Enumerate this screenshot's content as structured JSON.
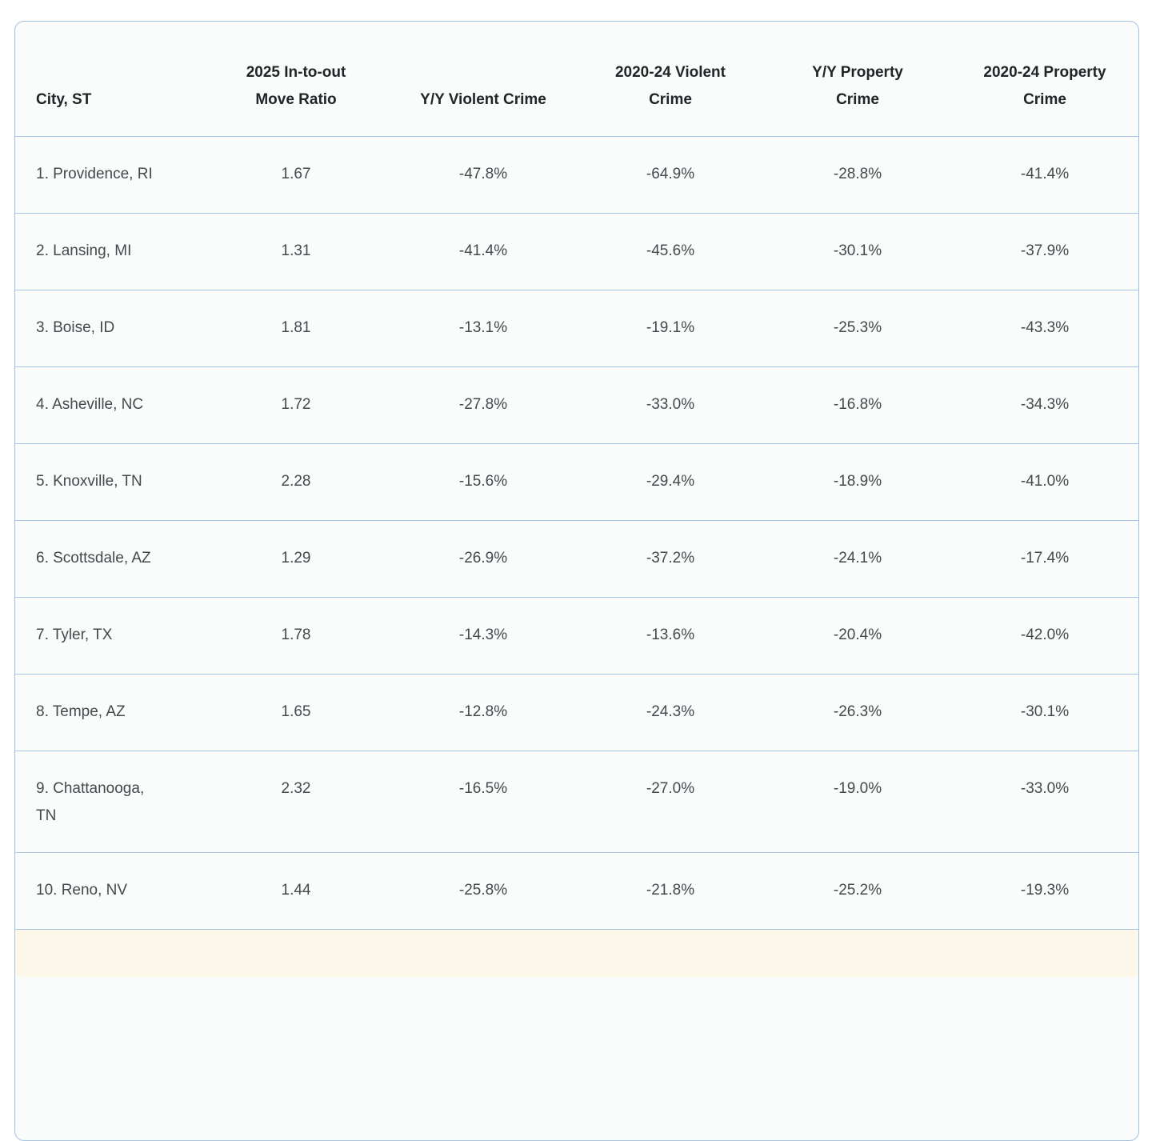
{
  "table": {
    "columns": [
      {
        "label": "City, ST"
      },
      {
        "label": [
          "2025 In-to-out",
          "Move Ratio"
        ]
      },
      {
        "label": "Y/Y Violent Crime"
      },
      {
        "label": [
          "2020-24 Violent",
          "Crime"
        ]
      },
      {
        "label": [
          "Y/Y Property",
          "Crime"
        ]
      },
      {
        "label": [
          "2020-24 Property",
          "Crime"
        ]
      }
    ],
    "rows": [
      {
        "city": "1. Providence, RI",
        "move_ratio": "1.67",
        "yy_violent": "-47.8%",
        "violent_2020_24": "-64.9%",
        "yy_property": "-28.8%",
        "property_2020_24": "-41.4%"
      },
      {
        "city": "2. Lansing, MI",
        "move_ratio": "1.31",
        "yy_violent": "-41.4%",
        "violent_2020_24": "-45.6%",
        "yy_property": "-30.1%",
        "property_2020_24": "-37.9%"
      },
      {
        "city": "3. Boise, ID",
        "move_ratio": "1.81",
        "yy_violent": "-13.1%",
        "violent_2020_24": "-19.1%",
        "yy_property": "-25.3%",
        "property_2020_24": "-43.3%"
      },
      {
        "city": "4. Asheville, NC",
        "move_ratio": "1.72",
        "yy_violent": "-27.8%",
        "violent_2020_24": "-33.0%",
        "yy_property": "-16.8%",
        "property_2020_24": "-34.3%"
      },
      {
        "city": "5. Knoxville, TN",
        "move_ratio": "2.28",
        "yy_violent": "-15.6%",
        "violent_2020_24": "-29.4%",
        "yy_property": "-18.9%",
        "property_2020_24": "-41.0%"
      },
      {
        "city": "6. Scottsdale, AZ",
        "move_ratio": "1.29",
        "yy_violent": "-26.9%",
        "violent_2020_24": "-37.2%",
        "yy_property": "-24.1%",
        "property_2020_24": "-17.4%"
      },
      {
        "city": "7. Tyler, TX",
        "move_ratio": "1.78",
        "yy_violent": "-14.3%",
        "violent_2020_24": "-13.6%",
        "yy_property": "-20.4%",
        "property_2020_24": "-42.0%"
      },
      {
        "city": "8. Tempe, AZ",
        "move_ratio": "1.65",
        "yy_violent": "-12.8%",
        "violent_2020_24": "-24.3%",
        "yy_property": "-26.3%",
        "property_2020_24": "-30.1%"
      },
      {
        "city": [
          "9. Chattanooga,",
          "TN"
        ],
        "move_ratio": "2.32",
        "yy_violent": "-16.5%",
        "violent_2020_24": "-27.0%",
        "yy_property": "-19.0%",
        "property_2020_24": "-33.0%"
      },
      {
        "city": "10. Reno, NV",
        "move_ratio": "1.44",
        "yy_violent": "-25.8%",
        "violent_2020_24": "-21.8%",
        "yy_property": "-25.2%",
        "property_2020_24": "-19.3%"
      }
    ]
  },
  "colors": {
    "border_blue": "#a4c1e2",
    "row_divider_blue": "#a9c4e6",
    "table_background": "#fafbfb",
    "header_text": "#222528",
    "body_text": "#45494e",
    "next_row_highlight": "#fcf7e8"
  }
}
